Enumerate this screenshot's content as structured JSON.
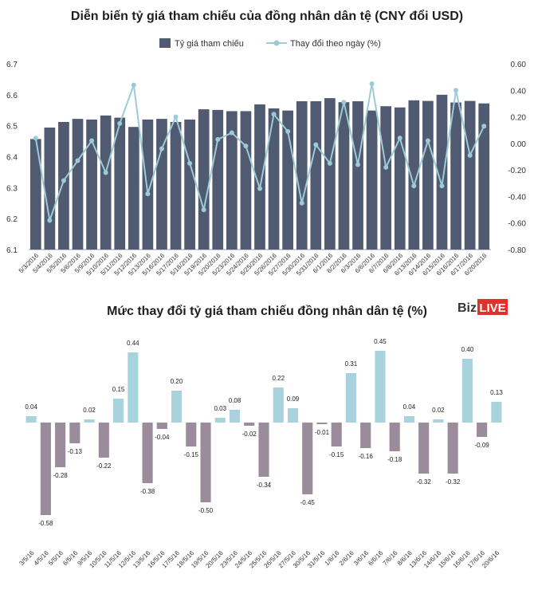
{
  "chart_data": [
    {
      "type": "bar+line",
      "title": "Diễn biến tỷ giá tham chiếu của đồng nhân dân tệ (CNY đổi USD)",
      "legend": {
        "placement": "top-center",
        "entries": [
          "Tỷ giá tham chiếu",
          "Thay đổi theo ngày (%)"
        ]
      },
      "colors": {
        "bars": "#505a70",
        "line": "#9ccbd6",
        "axis": "#888888"
      },
      "categories": [
        "5/3/2016",
        "5/4/2016",
        "5/5/2016",
        "5/6/2016",
        "5/9/2016",
        "5/10/2016",
        "5/11/2016",
        "5/12/2016",
        "5/13/2016",
        "5/16/2016",
        "5/17/2016",
        "5/18/2016",
        "5/19/2016",
        "5/20/2016",
        "5/23/2016",
        "5/24/2016",
        "5/25/2016",
        "5/26/2016",
        "5/27/2016",
        "5/30/2016",
        "5/31/2016",
        "6/1/2016",
        "6/2/2016",
        "6/3/2016",
        "6/6/2016",
        "6/7/2016",
        "6/8/2016",
        "6/13/2016",
        "6/14/2016",
        "6/15/2016",
        "6/16/2016",
        "6/17/2016",
        "6/20/2016"
      ],
      "series": [
        {
          "name": "Tỷ giá tham chiếu",
          "kind": "bar",
          "axis": "left",
          "values": [
            6.457,
            6.494,
            6.512,
            6.522,
            6.52,
            6.533,
            6.526,
            6.496,
            6.52,
            6.522,
            6.512,
            6.52,
            6.553,
            6.551,
            6.547,
            6.547,
            6.569,
            6.556,
            6.549,
            6.579,
            6.579,
            6.589,
            6.576,
            6.579,
            6.549,
            6.563,
            6.559,
            6.582,
            6.58,
            6.6,
            6.575,
            6.58,
            6.572
          ]
        },
        {
          "name": "Thay đổi theo ngày (%)",
          "kind": "line",
          "axis": "right",
          "values": [
            0.04,
            -0.58,
            -0.28,
            -0.13,
            0.02,
            -0.22,
            0.15,
            0.44,
            -0.38,
            -0.04,
            0.2,
            -0.15,
            -0.5,
            0.03,
            0.08,
            -0.02,
            -0.34,
            0.22,
            0.09,
            -0.45,
            -0.01,
            -0.15,
            0.31,
            -0.16,
            0.45,
            -0.18,
            0.04,
            -0.32,
            0.02,
            -0.32,
            0.4,
            -0.09,
            0.13
          ]
        }
      ],
      "left_axis": {
        "ylim": [
          6.1,
          6.7
        ],
        "ticks": [
          "6.1",
          "6.2",
          "6.3",
          "6.4",
          "6.5",
          "6.6",
          "6.7"
        ]
      },
      "right_axis": {
        "ylim": [
          -0.8,
          0.6
        ],
        "ticks": [
          "-0.80",
          "-0.60",
          "-0.40",
          "-0.20",
          "0.00",
          "0.20",
          "0.40",
          "0.60"
        ]
      },
      "grid": false
    },
    {
      "type": "bar",
      "title": "Mức thay đổi tỷ giá tham chiếu đồng nhân dân tệ (%)",
      "colors": {
        "positive": "#a8d2dc",
        "negative": "#9b8c9c"
      },
      "categories": [
        "3/5/16",
        "4/5/16",
        "5/5/16",
        "6/5/16",
        "9/5/16",
        "10/5/16",
        "11/5/16",
        "12/5/16",
        "13/5/16",
        "16/5/16",
        "17/5/16",
        "18/5/16",
        "19/5/16",
        "20/5/16",
        "23/5/16",
        "24/5/16",
        "25/5/16",
        "26/5/16",
        "27/5/16",
        "30/5/16",
        "31/5/16",
        "1/6/16",
        "2/6/16",
        "3/6/16",
        "6/6/16",
        "7/6/16",
        "8/6/16",
        "13/6/16",
        "14/6/16",
        "15/6/16",
        "16/6/16",
        "17/6/16",
        "20/6/16"
      ],
      "values": [
        0.04,
        -0.58,
        -0.28,
        -0.13,
        0.02,
        -0.22,
        0.15,
        0.44,
        -0.38,
        -0.04,
        0.2,
        -0.15,
        -0.5,
        0.03,
        0.08,
        -0.02,
        -0.34,
        0.22,
        0.09,
        -0.45,
        -0.01,
        -0.15,
        0.31,
        -0.16,
        0.45,
        -0.18,
        0.04,
        -0.32,
        0.02,
        -0.32,
        0.4,
        -0.09,
        0.13
      ],
      "data_labels": [
        "0.04",
        "-0.58",
        "-0.28",
        "-0.13",
        "0.02",
        "-0.22",
        "0.15",
        "0.44",
        "-0.38",
        "-0.04",
        "0.20",
        "-0.15",
        "-0.50",
        "0.03",
        "0.08",
        "-0.02",
        "-0.34",
        "0.22",
        "0.09",
        "-0.45",
        "-0.01",
        "-0.15",
        "0.31",
        "-0.16",
        "0.45",
        "-0.18",
        "0.04",
        "-0.32",
        "0.02",
        "-0.32",
        "0.40",
        "-0.09",
        "0.13"
      ],
      "grid": false
    }
  ],
  "logo": {
    "part1": "Biz",
    "part2": "LIVE",
    "color1": "#333333",
    "color2": "#e0312b"
  }
}
